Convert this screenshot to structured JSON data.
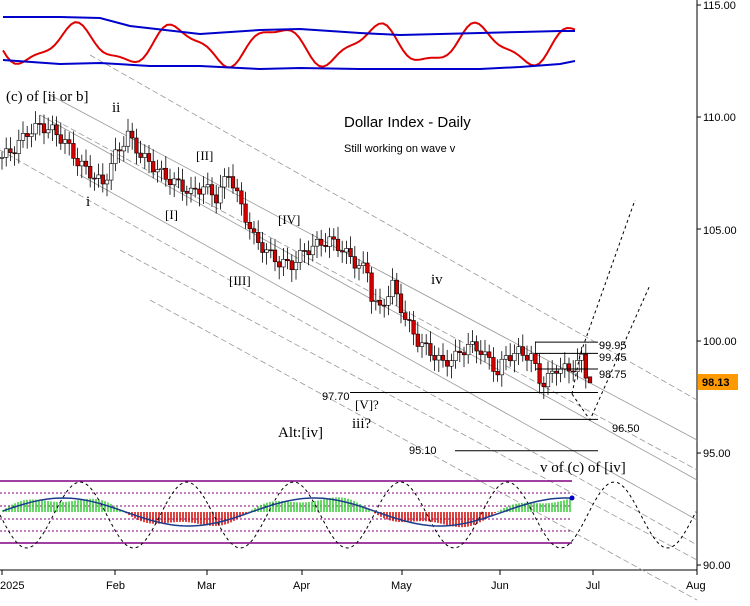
{
  "chart_data": {
    "type": "candlestick",
    "title": "Dollar Index - Daily",
    "subtitle": "Still working on wave v",
    "y_axis": {
      "ticks": [
        "115.00",
        "110.00",
        "105.00",
        "100.00",
        "95.00",
        "90.00"
      ],
      "range": [
        90,
        115.5
      ]
    },
    "x_axis": {
      "ticks": [
        "2025",
        "Feb",
        "Mar",
        "Apr",
        "May",
        "Jun",
        "Jul",
        "Aug"
      ]
    },
    "last_price": {
      "value": 98.13,
      "label": "98.13",
      "color": "#ff9900"
    },
    "colors": {
      "up": "#ffffff",
      "down": "#d40000",
      "osc_red": "#e00000",
      "osc_blue": "#0000cc",
      "band_purple": "#800080"
    },
    "wave_labels": {
      "top_left": "(c) of [ii or b]",
      "ii": "ii",
      "i": "i",
      "II": "[II]",
      "I": "[I]",
      "IV_bracket": "[IV]",
      "III": "[III]",
      "iv": "iv",
      "V_q": "[V]?",
      "iii_q": "iii?",
      "alt_iv": "Alt:[iv]",
      "target_label": "v of (c) of [iv]"
    },
    "levels": [
      {
        "label": "99.95",
        "value": 99.95
      },
      {
        "label": "99.45",
        "value": 99.45
      },
      {
        "label": "98.75",
        "value": 98.75
      },
      {
        "label": "97.70",
        "value": 97.7
      },
      {
        "label": "96.50",
        "value": 96.5
      },
      {
        "label": "95.10",
        "value": 95.1
      }
    ],
    "series": [
      {
        "name": "price",
        "points": [
          [
            0,
            108.2
          ],
          [
            3,
            108.6
          ],
          [
            6,
            109.3
          ],
          [
            9,
            109.6
          ],
          [
            12,
            109.4
          ],
          [
            15,
            108.9
          ],
          [
            18,
            108.0
          ],
          [
            21,
            107.5
          ],
          [
            24,
            107.0
          ],
          [
            27,
            108.3
          ],
          [
            30,
            109.2
          ],
          [
            33,
            108.3
          ],
          [
            36,
            107.8
          ],
          [
            39,
            107.3
          ],
          [
            42,
            107.0
          ],
          [
            45,
            106.6
          ],
          [
            48,
            106.9
          ],
          [
            51,
            106.4
          ],
          [
            54,
            107.5
          ],
          [
            57,
            106.0
          ],
          [
            60,
            104.6
          ],
          [
            63,
            104.0
          ],
          [
            66,
            103.5
          ],
          [
            69,
            103.4
          ],
          [
            72,
            104.0
          ],
          [
            75,
            104.3
          ],
          [
            78,
            104.5
          ],
          [
            81,
            104.1
          ],
          [
            84,
            103.5
          ],
          [
            87,
            103.1
          ],
          [
            88,
            102.0
          ],
          [
            90,
            101.4
          ],
          [
            93,
            102.5
          ],
          [
            96,
            101.0
          ],
          [
            99,
            100.0
          ],
          [
            102,
            99.5
          ],
          [
            105,
            99.0
          ],
          [
            108,
            99.3
          ],
          [
            111,
            99.8
          ],
          [
            114,
            99.6
          ],
          [
            116,
            99.1
          ],
          [
            118,
            98.6
          ],
          [
            120,
            99.3
          ],
          [
            123,
            99.5
          ],
          [
            126,
            99.3
          ],
          [
            128,
            98.3
          ],
          [
            129,
            98.1
          ],
          [
            132,
            98.8
          ],
          [
            135,
            98.7
          ],
          [
            138,
            99.2
          ],
          [
            139,
            98.5
          ],
          [
            140,
            98.13
          ]
        ]
      }
    ]
  }
}
